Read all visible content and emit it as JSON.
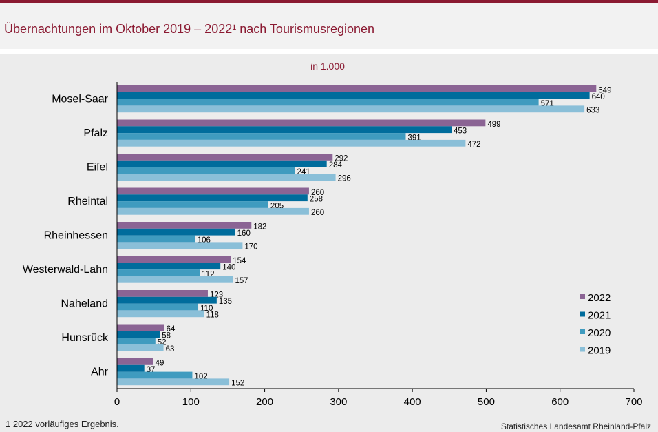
{
  "header": {
    "title": "Übernachtungen im Oktober 2019 – 2022¹ nach Tourismusregionen"
  },
  "chart_data": {
    "type": "bar",
    "orientation": "horizontal",
    "title": "Übernachtungen im Oktober 2019 – 2022¹ nach Tourismusregionen",
    "subtitle": "in 1.000",
    "categories": [
      "Mosel-Saar",
      "Pfalz",
      "Eifel",
      "Rheintal",
      "Rheinhessen",
      "Westerwald-Lahn",
      "Naheland",
      "Hunsrück",
      "Ahr"
    ],
    "series": [
      {
        "name": "2022",
        "color": "#8b6494",
        "values": [
          649,
          499,
          292,
          260,
          182,
          154,
          123,
          64,
          49
        ]
      },
      {
        "name": "2021",
        "color": "#006c9c",
        "values": [
          640,
          453,
          284,
          258,
          160,
          140,
          135,
          58,
          37
        ]
      },
      {
        "name": "2020",
        "color": "#3f9bbf",
        "values": [
          571,
          391,
          241,
          205,
          106,
          112,
          110,
          52,
          102
        ]
      },
      {
        "name": "2019",
        "color": "#8abfd8",
        "values": [
          633,
          472,
          296,
          260,
          170,
          157,
          118,
          63,
          152
        ]
      }
    ],
    "xlim": [
      0,
      700
    ],
    "xticks": [
      0,
      100,
      200,
      300,
      400,
      500,
      600,
      700
    ],
    "xlabel": "",
    "ylabel": "",
    "grid": false,
    "legend": "bottom-right"
  },
  "footer": {
    "footnote": "1 2022 vorläufiges Ergebnis.",
    "source": "Statistisches Landesamt  Rheinland-Pfalz"
  }
}
